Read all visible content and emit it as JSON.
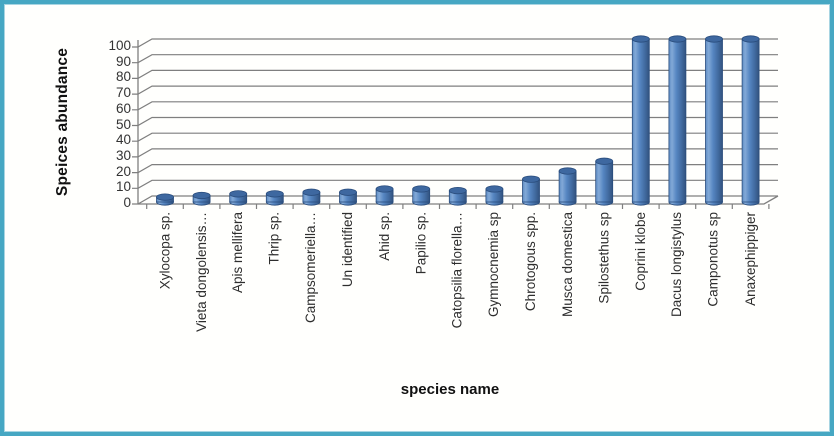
{
  "chart_data": {
    "type": "bar",
    "subtype": "3d-cylinder",
    "title": "",
    "ylabel": "Speices abundance",
    "xlabel": "species name",
    "categories": [
      "Xylocopa sp.",
      "Vieta dongolensis…",
      "Apis mellifera",
      "Thrip sp.",
      "Campsomeriella…",
      "Un identified",
      "Ahid sp.",
      "Papilio sp.",
      "Catopsilia florella…",
      "Gymnocnemia sp",
      "Chrotogous spp.",
      "Musca domestica",
      "Spilostethus sp",
      "Coprini klobe",
      "Dacus longistylus",
      "Camponotus sp",
      "Anaxephippiger"
    ],
    "values": [
      3,
      4,
      5,
      5,
      6,
      6,
      8,
      8,
      7,
      8,
      14,
      19,
      25,
      100,
      100,
      100,
      100
    ],
    "ylim": [
      0,
      100
    ],
    "yticks": [
      0,
      10,
      20,
      30,
      40,
      50,
      60,
      70,
      80,
      90,
      100
    ],
    "grid": true,
    "legend": "none",
    "colors": {
      "bar_fill": "#4f81bd",
      "bar_fill_light": "#82a9d7",
      "bar_fill_dark": "#32527e",
      "bar_top_cap": "#3e68a0",
      "bar_edge": "#2a4d7d",
      "grid_line": "#7f7f7f",
      "tick_text": "#333333",
      "title_text": "#111111",
      "frame_border": "#46a7c3",
      "background": "#fffffd"
    }
  }
}
